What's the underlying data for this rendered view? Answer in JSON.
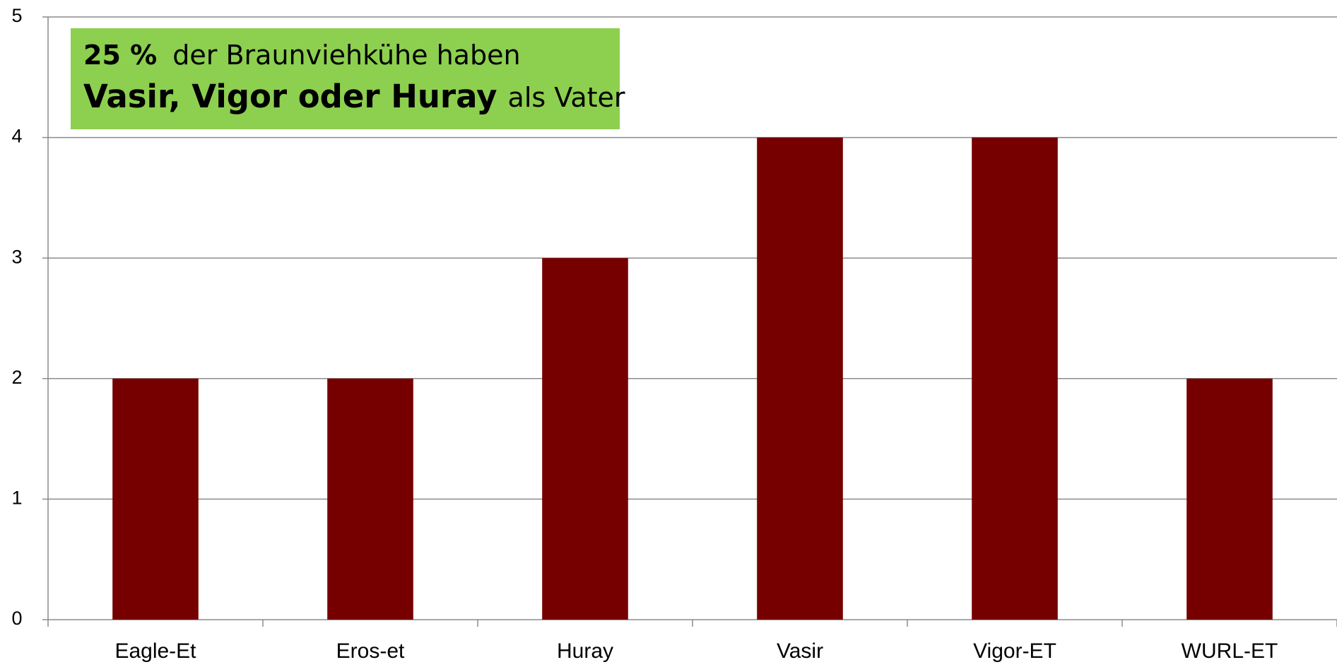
{
  "chart_data": {
    "type": "bar",
    "annotation": {
      "lines": [
        [
          "25 %",
          "der Braunviehkühe haben"
        ],
        [
          "Vasir, Vigor oder Huray",
          "als Vater"
        ]
      ]
    },
    "categories": [
      "Eagle-Et",
      "Eros-et",
      "Huray",
      "Vasir",
      "Vigor-ET",
      "WURL-ET"
    ],
    "values": [
      2,
      2,
      3,
      4,
      4,
      2
    ],
    "color": "#760000",
    "ylim": [
      0,
      5
    ],
    "yticks": [
      0,
      1,
      2,
      3,
      4,
      5
    ],
    "grid": true
  }
}
